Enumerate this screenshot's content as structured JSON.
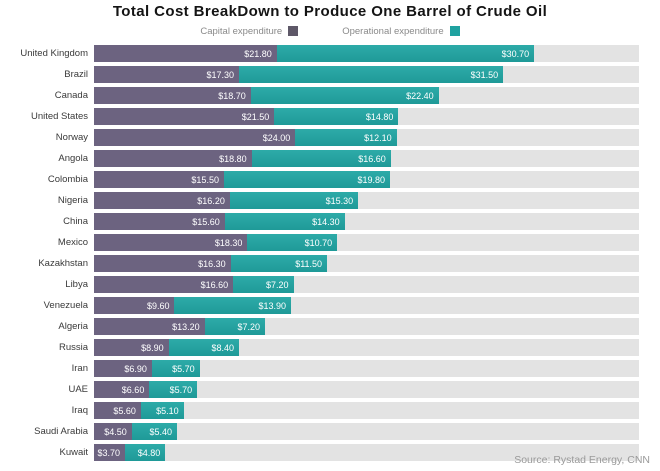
{
  "title": "Total Cost BreakDown to Produce One Barrel of Crude Oil",
  "source": "Source: Rystad Energy, CNN",
  "colors": {
    "capex": "#6c6380",
    "opex_top": "#2daba8",
    "opex_bottom": "#1f9a98",
    "capex_legend_swatch": "#5e5868",
    "opex_legend_swatch": "#1fa2a0",
    "track": "#e3e3e3"
  },
  "legend": [
    {
      "label": "Capital expenditure",
      "swatch": "#5e5868"
    },
    {
      "label": "Operational expenditure",
      "swatch": "#1fa2a0"
    }
  ],
  "chart_data": {
    "type": "bar",
    "orientation": "horizontal",
    "stacked": true,
    "title": "Total Cost BreakDown to Produce One Barrel of Crude Oil",
    "xlabel": "",
    "ylabel": "",
    "xlim": [
      0,
      65
    ],
    "grid": false,
    "legend_position": "top",
    "value_label_format": "$%.2f",
    "categories": [
      "United Kingdom",
      "Brazil",
      "Canada",
      "United States",
      "Norway",
      "Angola",
      "Colombia",
      "Nigeria",
      "China",
      "Mexico",
      "Kazakhstan",
      "Libya",
      "Venezuela",
      "Algeria",
      "Russia",
      "Iran",
      "UAE",
      "Iraq",
      "Saudi Arabia",
      "Kuwait"
    ],
    "series": [
      {
        "name": "Capital expenditure",
        "color": "#6c6380",
        "values": [
          21.8,
          17.3,
          18.7,
          21.5,
          24.0,
          18.8,
          15.5,
          16.2,
          15.6,
          18.3,
          16.3,
          16.6,
          9.6,
          13.2,
          8.9,
          6.9,
          6.6,
          5.6,
          4.5,
          3.7
        ]
      },
      {
        "name": "Operational expenditure",
        "color": "#27a09d",
        "values": [
          30.7,
          31.5,
          22.4,
          14.8,
          12.1,
          16.6,
          19.8,
          15.3,
          14.3,
          10.7,
          11.5,
          7.2,
          13.9,
          7.2,
          8.4,
          5.7,
          5.7,
          5.1,
          5.4,
          4.8
        ]
      }
    ]
  }
}
